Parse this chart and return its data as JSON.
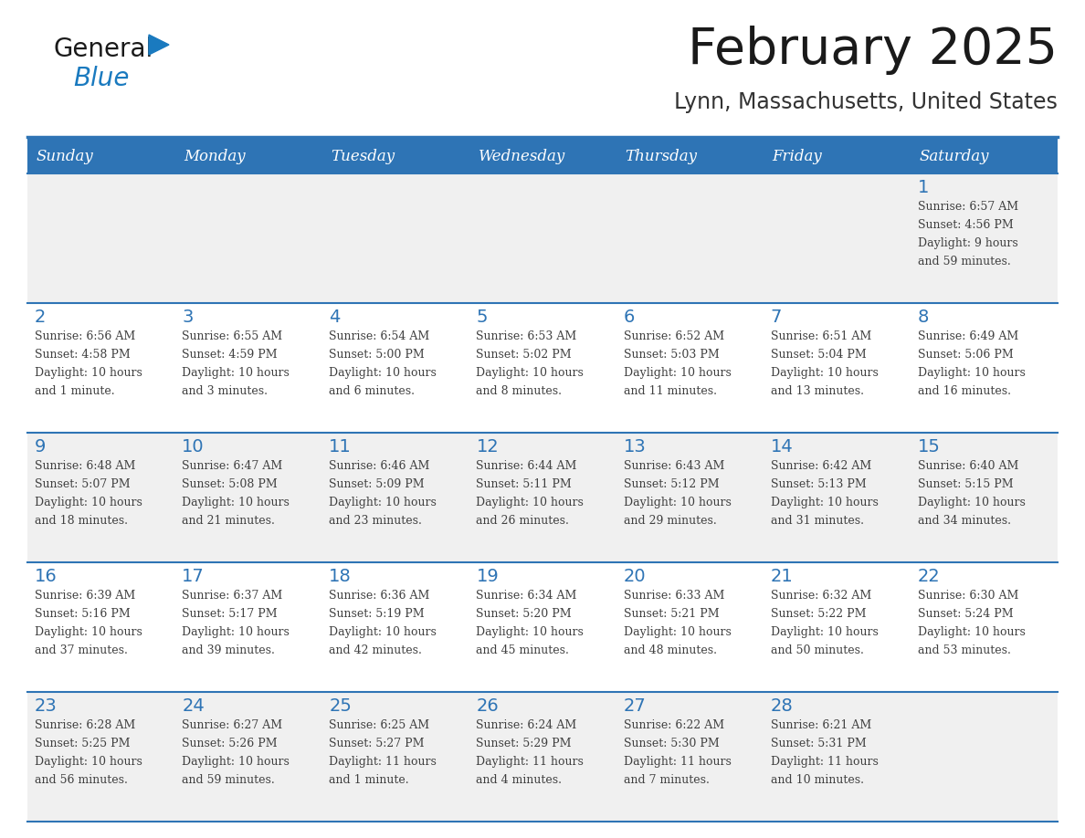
{
  "title": "February 2025",
  "subtitle": "Lynn, Massachusetts, United States",
  "header_bg": "#2E74B5",
  "header_text_color": "#FFFFFF",
  "cell_bg_odd": "#F0F0F0",
  "cell_bg_even": "#FFFFFF",
  "day_number_color": "#2E74B5",
  "text_color": "#404040",
  "separator_color": "#2E74B5",
  "days_of_week": [
    "Sunday",
    "Monday",
    "Tuesday",
    "Wednesday",
    "Thursday",
    "Friday",
    "Saturday"
  ],
  "weeks": [
    [
      {
        "day": null,
        "sunrise": null,
        "sunset": null,
        "daylight": null
      },
      {
        "day": null,
        "sunrise": null,
        "sunset": null,
        "daylight": null
      },
      {
        "day": null,
        "sunrise": null,
        "sunset": null,
        "daylight": null
      },
      {
        "day": null,
        "sunrise": null,
        "sunset": null,
        "daylight": null
      },
      {
        "day": null,
        "sunrise": null,
        "sunset": null,
        "daylight": null
      },
      {
        "day": null,
        "sunrise": null,
        "sunset": null,
        "daylight": null
      },
      {
        "day": 1,
        "sunrise": "6:57 AM",
        "sunset": "4:56 PM",
        "daylight": "9 hours\nand 59 minutes."
      }
    ],
    [
      {
        "day": 2,
        "sunrise": "6:56 AM",
        "sunset": "4:58 PM",
        "daylight": "10 hours\nand 1 minute."
      },
      {
        "day": 3,
        "sunrise": "6:55 AM",
        "sunset": "4:59 PM",
        "daylight": "10 hours\nand 3 minutes."
      },
      {
        "day": 4,
        "sunrise": "6:54 AM",
        "sunset": "5:00 PM",
        "daylight": "10 hours\nand 6 minutes."
      },
      {
        "day": 5,
        "sunrise": "6:53 AM",
        "sunset": "5:02 PM",
        "daylight": "10 hours\nand 8 minutes."
      },
      {
        "day": 6,
        "sunrise": "6:52 AM",
        "sunset": "5:03 PM",
        "daylight": "10 hours\nand 11 minutes."
      },
      {
        "day": 7,
        "sunrise": "6:51 AM",
        "sunset": "5:04 PM",
        "daylight": "10 hours\nand 13 minutes."
      },
      {
        "day": 8,
        "sunrise": "6:49 AM",
        "sunset": "5:06 PM",
        "daylight": "10 hours\nand 16 minutes."
      }
    ],
    [
      {
        "day": 9,
        "sunrise": "6:48 AM",
        "sunset": "5:07 PM",
        "daylight": "10 hours\nand 18 minutes."
      },
      {
        "day": 10,
        "sunrise": "6:47 AM",
        "sunset": "5:08 PM",
        "daylight": "10 hours\nand 21 minutes."
      },
      {
        "day": 11,
        "sunrise": "6:46 AM",
        "sunset": "5:09 PM",
        "daylight": "10 hours\nand 23 minutes."
      },
      {
        "day": 12,
        "sunrise": "6:44 AM",
        "sunset": "5:11 PM",
        "daylight": "10 hours\nand 26 minutes."
      },
      {
        "day": 13,
        "sunrise": "6:43 AM",
        "sunset": "5:12 PM",
        "daylight": "10 hours\nand 29 minutes."
      },
      {
        "day": 14,
        "sunrise": "6:42 AM",
        "sunset": "5:13 PM",
        "daylight": "10 hours\nand 31 minutes."
      },
      {
        "day": 15,
        "sunrise": "6:40 AM",
        "sunset": "5:15 PM",
        "daylight": "10 hours\nand 34 minutes."
      }
    ],
    [
      {
        "day": 16,
        "sunrise": "6:39 AM",
        "sunset": "5:16 PM",
        "daylight": "10 hours\nand 37 minutes."
      },
      {
        "day": 17,
        "sunrise": "6:37 AM",
        "sunset": "5:17 PM",
        "daylight": "10 hours\nand 39 minutes."
      },
      {
        "day": 18,
        "sunrise": "6:36 AM",
        "sunset": "5:19 PM",
        "daylight": "10 hours\nand 42 minutes."
      },
      {
        "day": 19,
        "sunrise": "6:34 AM",
        "sunset": "5:20 PM",
        "daylight": "10 hours\nand 45 minutes."
      },
      {
        "day": 20,
        "sunrise": "6:33 AM",
        "sunset": "5:21 PM",
        "daylight": "10 hours\nand 48 minutes."
      },
      {
        "day": 21,
        "sunrise": "6:32 AM",
        "sunset": "5:22 PM",
        "daylight": "10 hours\nand 50 minutes."
      },
      {
        "day": 22,
        "sunrise": "6:30 AM",
        "sunset": "5:24 PM",
        "daylight": "10 hours\nand 53 minutes."
      }
    ],
    [
      {
        "day": 23,
        "sunrise": "6:28 AM",
        "sunset": "5:25 PM",
        "daylight": "10 hours\nand 56 minutes."
      },
      {
        "day": 24,
        "sunrise": "6:27 AM",
        "sunset": "5:26 PM",
        "daylight": "10 hours\nand 59 minutes."
      },
      {
        "day": 25,
        "sunrise": "6:25 AM",
        "sunset": "5:27 PM",
        "daylight": "11 hours\nand 1 minute."
      },
      {
        "day": 26,
        "sunrise": "6:24 AM",
        "sunset": "5:29 PM",
        "daylight": "11 hours\nand 4 minutes."
      },
      {
        "day": 27,
        "sunrise": "6:22 AM",
        "sunset": "5:30 PM",
        "daylight": "11 hours\nand 7 minutes."
      },
      {
        "day": 28,
        "sunrise": "6:21 AM",
        "sunset": "5:31 PM",
        "daylight": "11 hours\nand 10 minutes."
      },
      {
        "day": null,
        "sunrise": null,
        "sunset": null,
        "daylight": null
      }
    ]
  ],
  "logo_color_general": "#1a1a1a",
  "logo_color_blue": "#1a7abf"
}
